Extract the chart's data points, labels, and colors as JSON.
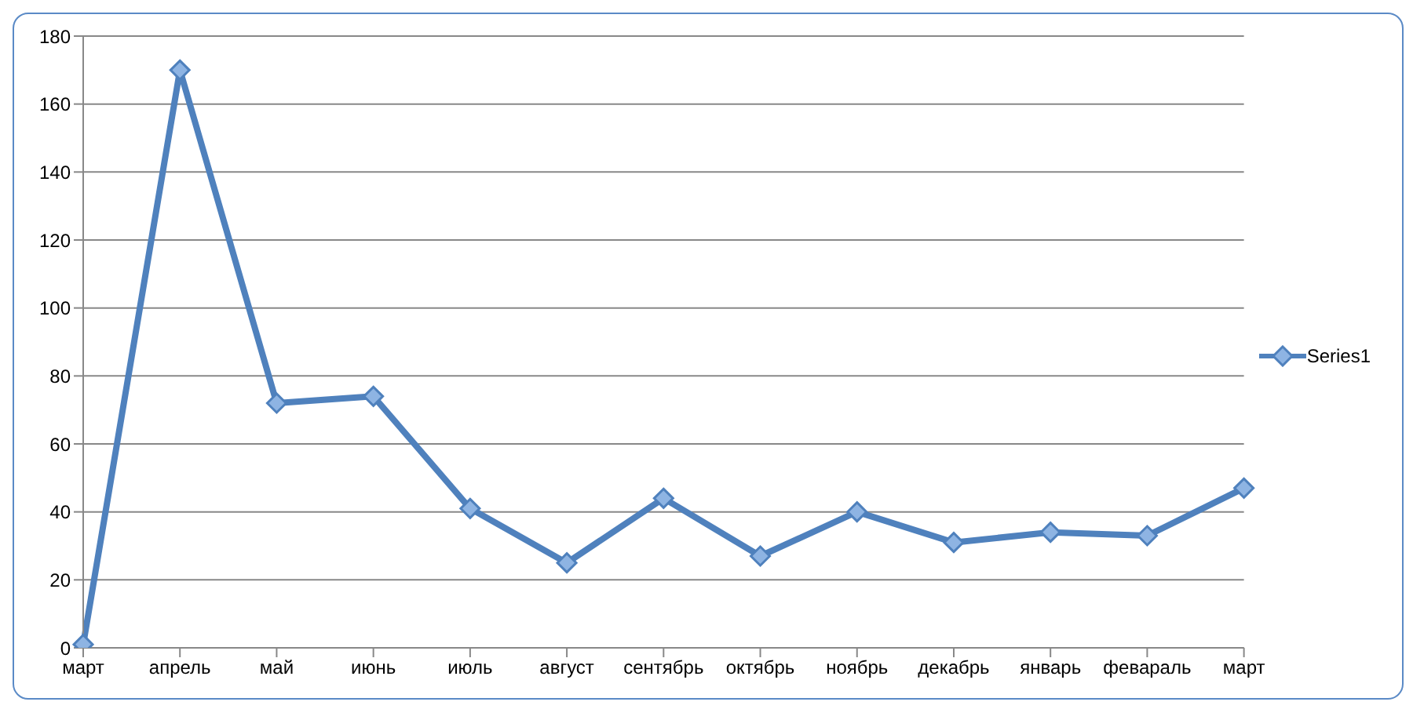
{
  "chart_data": {
    "type": "line",
    "categories": [
      "март",
      "апрель",
      "май",
      "июнь",
      "июль",
      "август",
      "сентябрь",
      "октябрь",
      "ноябрь",
      "декабрь",
      "январь",
      "февараль",
      "март"
    ],
    "series": [
      {
        "name": "Series1",
        "color": "#4f81bd",
        "values": [
          1,
          170,
          72,
          74,
          41,
          25,
          44,
          27,
          40,
          31,
          34,
          33,
          47
        ]
      }
    ],
    "ylim": [
      0,
      180
    ],
    "yticks": [
      0,
      20,
      40,
      60,
      80,
      100,
      120,
      140,
      160,
      180
    ],
    "grid": "y",
    "legend": "right",
    "marker": "diamond",
    "line_style": "solid"
  }
}
